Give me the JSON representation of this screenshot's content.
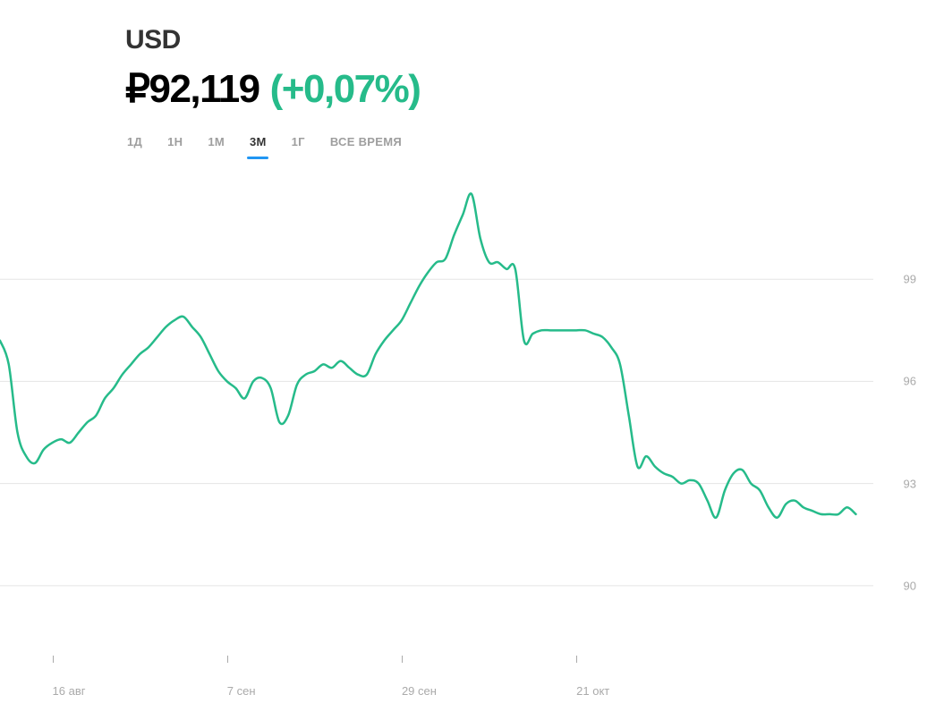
{
  "header": {
    "currency": "USD",
    "price": "₽92,119",
    "change": "(+0,07%)",
    "change_color": "#26bb8a"
  },
  "tabs": {
    "items": [
      {
        "label": "1Д",
        "active": false
      },
      {
        "label": "1Н",
        "active": false
      },
      {
        "label": "1М",
        "active": false
      },
      {
        "label": "3М",
        "active": true
      },
      {
        "label": "1Г",
        "active": false
      },
      {
        "label": "ВСЕ ВРЕМЯ",
        "active": false
      }
    ]
  },
  "chart": {
    "type": "line",
    "line_color": "#26bb8a",
    "line_width": 2.5,
    "grid_color": "#e5e5e5",
    "grid_width": 1,
    "background_color": "#ffffff",
    "label_color": "#aaaaaa",
    "label_fontsize": 13,
    "xlim": [
      0,
      100
    ],
    "ylim": [
      88,
      102
    ],
    "y_ticks": [
      {
        "value": 90,
        "label": "90"
      },
      {
        "value": 93,
        "label": "93"
      },
      {
        "value": 96,
        "label": "96"
      },
      {
        "value": 99,
        "label": "99"
      }
    ],
    "x_ticks": [
      {
        "value": 6,
        "label": "16 авг"
      },
      {
        "value": 26,
        "label": "7 сен"
      },
      {
        "value": 46,
        "label": "29 сен"
      },
      {
        "value": 66,
        "label": "21 окт"
      }
    ],
    "data": [
      [
        0,
        97.2
      ],
      [
        1,
        96.5
      ],
      [
        2,
        94.5
      ],
      [
        3,
        93.8
      ],
      [
        4,
        93.6
      ],
      [
        5,
        94.0
      ],
      [
        6,
        94.2
      ],
      [
        7,
        94.3
      ],
      [
        8,
        94.2
      ],
      [
        9,
        94.5
      ],
      [
        10,
        94.8
      ],
      [
        11,
        95.0
      ],
      [
        12,
        95.5
      ],
      [
        13,
        95.8
      ],
      [
        14,
        96.2
      ],
      [
        15,
        96.5
      ],
      [
        16,
        96.8
      ],
      [
        17,
        97.0
      ],
      [
        18,
        97.3
      ],
      [
        19,
        97.6
      ],
      [
        20,
        97.8
      ],
      [
        21,
        97.9
      ],
      [
        22,
        97.6
      ],
      [
        23,
        97.3
      ],
      [
        24,
        96.8
      ],
      [
        25,
        96.3
      ],
      [
        26,
        96.0
      ],
      [
        27,
        95.8
      ],
      [
        28,
        95.5
      ],
      [
        29,
        96.0
      ],
      [
        30,
        96.1
      ],
      [
        31,
        95.8
      ],
      [
        32,
        94.8
      ],
      [
        33,
        95.0
      ],
      [
        34,
        95.9
      ],
      [
        35,
        96.2
      ],
      [
        36,
        96.3
      ],
      [
        37,
        96.5
      ],
      [
        38,
        96.4
      ],
      [
        39,
        96.6
      ],
      [
        40,
        96.4
      ],
      [
        41,
        96.2
      ],
      [
        42,
        96.2
      ],
      [
        43,
        96.8
      ],
      [
        44,
        97.2
      ],
      [
        45,
        97.5
      ],
      [
        46,
        97.8
      ],
      [
        47,
        98.3
      ],
      [
        48,
        98.8
      ],
      [
        49,
        99.2
      ],
      [
        50,
        99.5
      ],
      [
        51,
        99.6
      ],
      [
        52,
        100.3
      ],
      [
        53,
        100.9
      ],
      [
        54,
        101.5
      ],
      [
        55,
        100.2
      ],
      [
        56,
        99.5
      ],
      [
        57,
        99.5
      ],
      [
        58,
        99.3
      ],
      [
        59,
        99.3
      ],
      [
        60,
        97.2
      ],
      [
        61,
        97.4
      ],
      [
        62,
        97.5
      ],
      [
        63,
        97.5
      ],
      [
        64,
        97.5
      ],
      [
        65,
        97.5
      ],
      [
        66,
        97.5
      ],
      [
        67,
        97.5
      ],
      [
        68,
        97.4
      ],
      [
        69,
        97.3
      ],
      [
        70,
        97.0
      ],
      [
        71,
        96.5
      ],
      [
        72,
        95.0
      ],
      [
        73,
        93.5
      ],
      [
        74,
        93.8
      ],
      [
        75,
        93.5
      ],
      [
        76,
        93.3
      ],
      [
        77,
        93.2
      ],
      [
        78,
        93.0
      ],
      [
        79,
        93.1
      ],
      [
        80,
        93.0
      ],
      [
        81,
        92.5
      ],
      [
        82,
        92.0
      ],
      [
        83,
        92.8
      ],
      [
        84,
        93.3
      ],
      [
        85,
        93.4
      ],
      [
        86,
        93.0
      ],
      [
        87,
        92.8
      ],
      [
        88,
        92.3
      ],
      [
        89,
        92.0
      ],
      [
        90,
        92.4
      ],
      [
        91,
        92.5
      ],
      [
        92,
        92.3
      ],
      [
        93,
        92.2
      ],
      [
        94,
        92.1
      ],
      [
        95,
        92.1
      ],
      [
        96,
        92.1
      ],
      [
        97,
        92.3
      ],
      [
        98,
        92.1
      ]
    ]
  }
}
